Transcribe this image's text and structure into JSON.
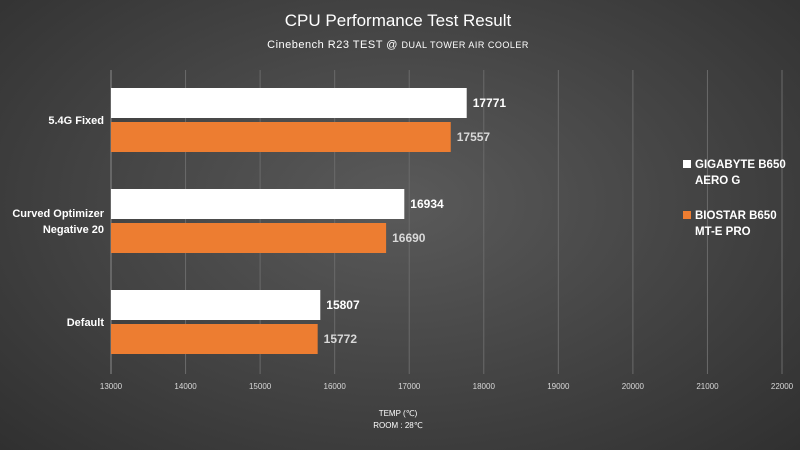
{
  "chart_data": {
    "type": "bar",
    "orientation": "horizontal",
    "title": "CPU Performance Test Result",
    "subtitle_main": "Cinebench R23 TEST @ ",
    "subtitle_small": "DUAL TOWER AIR COOLER",
    "xlabel": "TEMP (℃)",
    "xlabel_sub": "ROOM : 28℃",
    "xlim": [
      13000,
      22000
    ],
    "xticks": [
      13000,
      14000,
      15000,
      16000,
      17000,
      18000,
      19000,
      20000,
      21000,
      22000
    ],
    "grid": "vertical",
    "legend_position": "right",
    "categories": [
      [
        "5.4G Fixed"
      ],
      [
        "Curved Optimizer",
        "Negative 20"
      ],
      [
        "Default"
      ]
    ],
    "series": [
      {
        "name": "GIGABYTE B650 AERO G",
        "name_lines": [
          "GIGABYTE B650",
          "AERO G"
        ],
        "color": "#ffffff",
        "values": [
          17771,
          16934,
          15807
        ]
      },
      {
        "name": "BIOSTAR B650 MT-E PRO",
        "name_lines": [
          "BIOSTAR B650",
          "MT-E PRO"
        ],
        "color": "#ed7d31",
        "values": [
          17557,
          16690,
          15772
        ]
      }
    ]
  }
}
